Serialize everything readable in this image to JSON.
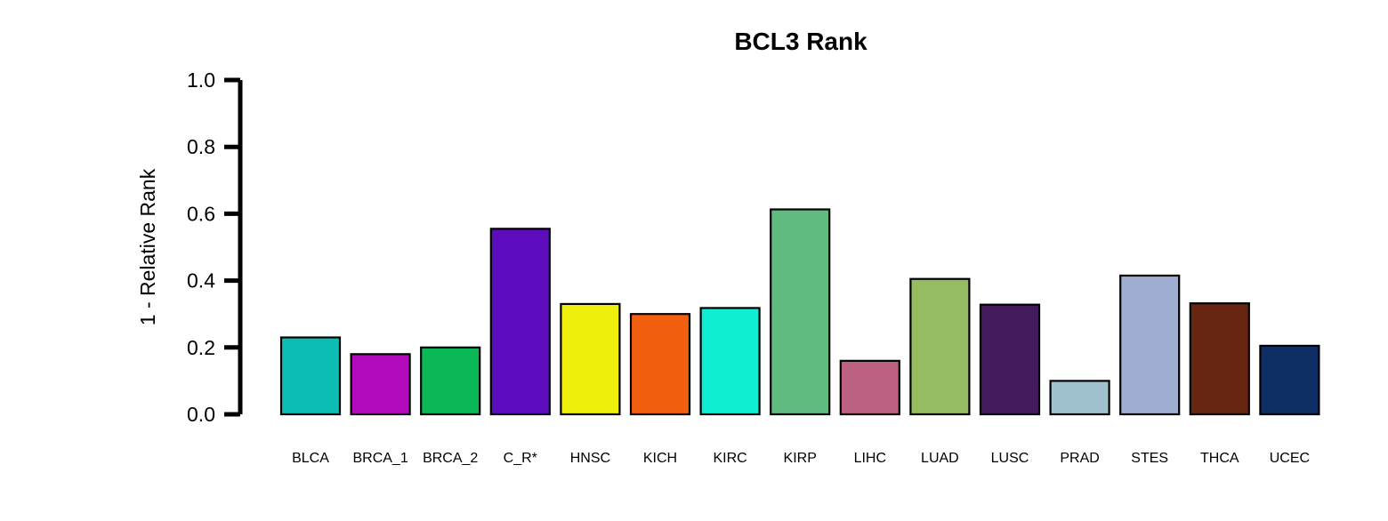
{
  "chart_data": {
    "type": "bar",
    "title": "BCL3 Rank",
    "xlabel": "",
    "ylabel": "1 - Relative Rank",
    "ylim": [
      0,
      1
    ],
    "yticks": [
      "0.0",
      "0.2",
      "0.4",
      "0.6",
      "0.8",
      "1.0"
    ],
    "ytick_values": [
      0,
      0.2,
      0.4,
      0.6,
      0.8,
      1.0
    ],
    "grid": false,
    "legend": "none",
    "categories": [
      "BLCA",
      "BRCA_1",
      "BRCA_2",
      "C_R*",
      "HNSC",
      "KICH",
      "KIRC",
      "KIRP",
      "LIHC",
      "LUAD",
      "LUSC",
      "PRAD",
      "STES",
      "THCA",
      "UCEC"
    ],
    "values": [
      0.23,
      0.18,
      0.2,
      0.555,
      0.33,
      0.3,
      0.318,
      0.613,
      0.16,
      0.405,
      0.328,
      0.1,
      0.415,
      0.332,
      0.205
    ],
    "colors": [
      "#0BBDB5",
      "#B10BBD",
      "#0BB857",
      "#5C0BBD",
      "#EEF00B",
      "#F25F0F",
      "#0FEDD2",
      "#5FBB7F",
      "#BC6182",
      "#96BC61",
      "#441B5C",
      "#A0C2D0",
      "#9FAED1",
      "#672612",
      "#0F2E63"
    ]
  }
}
